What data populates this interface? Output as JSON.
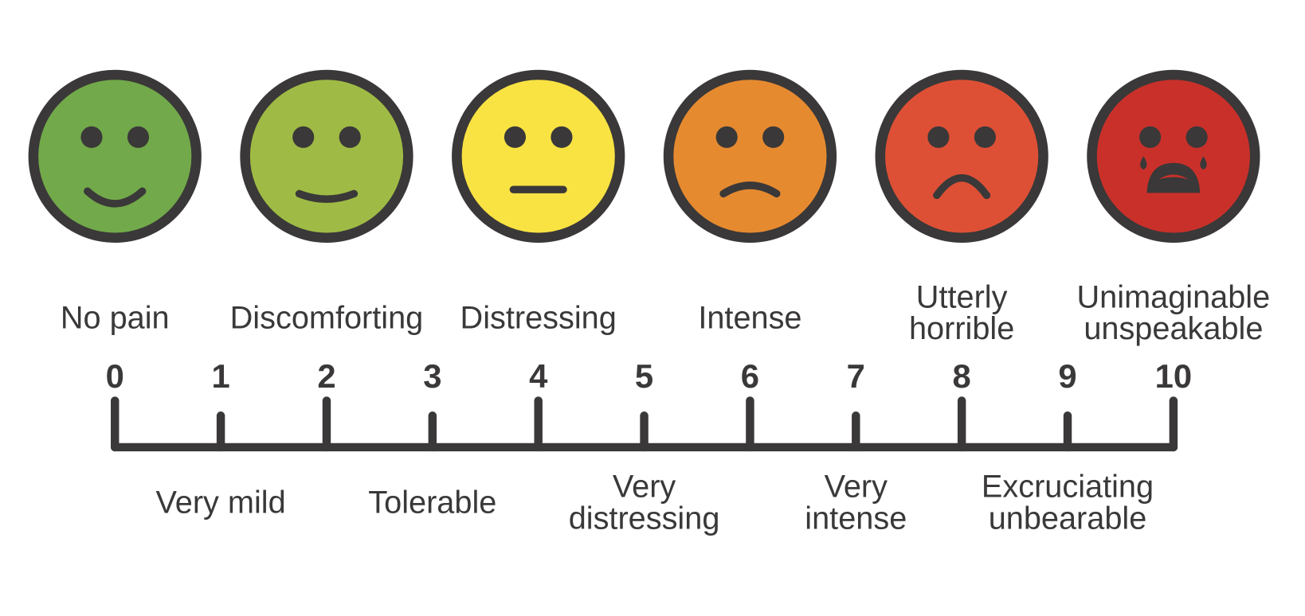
{
  "top_labels": [
    [
      "No pain"
    ],
    [
      "Discomforting"
    ],
    [
      "Distressing"
    ],
    [
      "Intense"
    ],
    [
      "Utterly",
      "horrible"
    ],
    [
      "Unimaginable",
      "unspeakable"
    ]
  ],
  "scale": [
    0,
    1,
    2,
    3,
    4,
    5,
    6,
    7,
    8,
    9,
    10
  ],
  "bottom_labels": [
    [
      "Very mild"
    ],
    [
      "Tolerable"
    ],
    [
      "Very",
      "distressing"
    ],
    [
      "Very",
      "intense"
    ],
    [
      "Excruciating",
      "unbearable"
    ]
  ]
}
